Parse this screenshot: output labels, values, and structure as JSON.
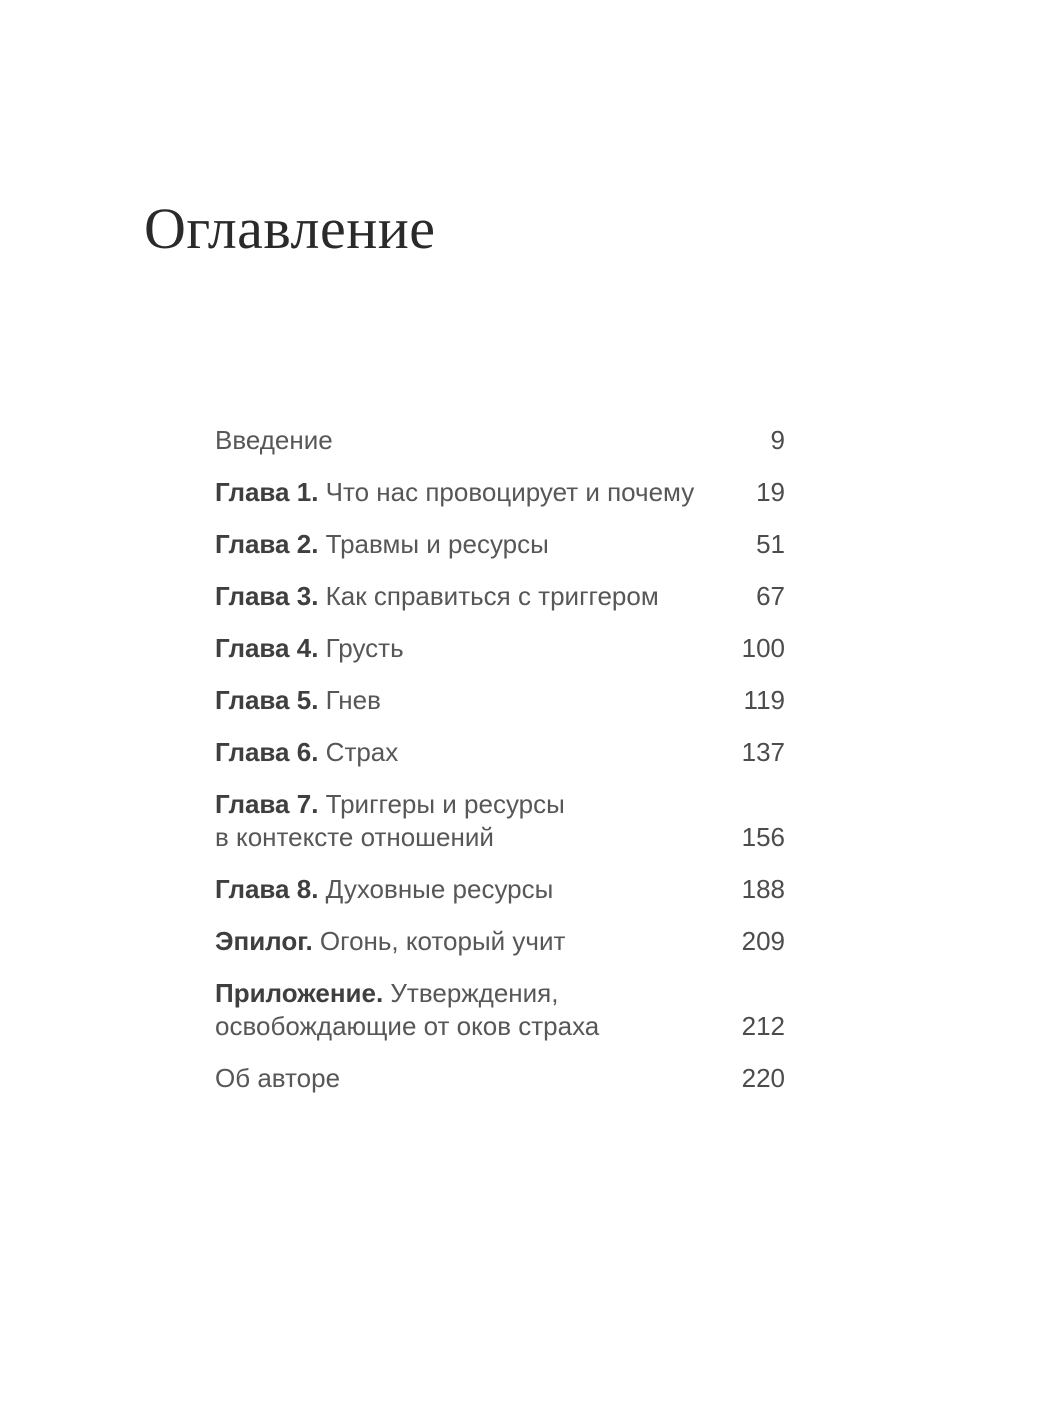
{
  "title": "Оглавление",
  "toc": {
    "entries": [
      {
        "label": "",
        "title": "Введение",
        "page": "9"
      },
      {
        "label": "Глава 1.",
        "title": "Что нас провоцирует и почему",
        "page": "19"
      },
      {
        "label": "Глава 2.",
        "title": "Травмы и ресурсы",
        "page": "51"
      },
      {
        "label": "Глава 3.",
        "title": "Как справиться с триггером",
        "page": "67"
      },
      {
        "label": "Глава 4.",
        "title": "Грусть",
        "page": "100"
      },
      {
        "label": "Глава 5.",
        "title": "Гнев",
        "page": "119"
      },
      {
        "label": "Глава 6.",
        "title": "Страх",
        "page": "137"
      },
      {
        "label": "Глава 7.",
        "title": "Триггеры и ресурсы\nв контексте отношений",
        "page": "156"
      },
      {
        "label": "Глава 8.",
        "title": "Духовные ресурсы",
        "page": "188"
      },
      {
        "label": "Эпилог.",
        "title": "Огонь, который учит",
        "page": "209"
      },
      {
        "label": "Приложение.",
        "title": "Утверждения,\nосвобождающие от оков страха",
        "page": "212"
      },
      {
        "label": "",
        "title": "Об авторе",
        "page": "220"
      }
    ]
  }
}
